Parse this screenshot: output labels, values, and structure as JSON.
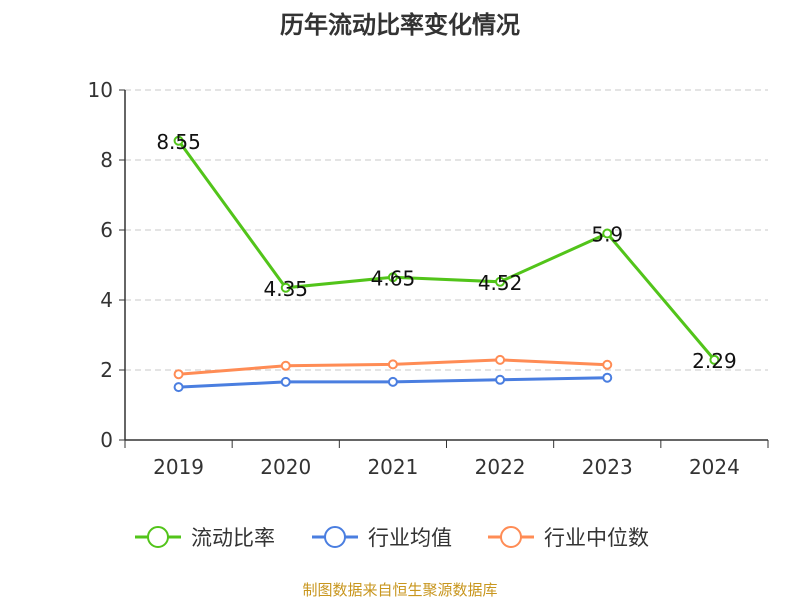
{
  "chart_data": {
    "type": "line",
    "title": "历年流动比率变化情况",
    "categories": [
      "2019",
      "2020",
      "2021",
      "2022",
      "2023",
      "2024"
    ],
    "ylim": [
      0,
      10
    ],
    "yticks": [
      0,
      2,
      4,
      6,
      8,
      10
    ],
    "grid": true,
    "legend_position": "bottom",
    "series": [
      {
        "name": "流动比率",
        "color": "#52c41a",
        "values": [
          8.55,
          4.35,
          4.65,
          4.52,
          5.9,
          2.29
        ],
        "labels": [
          "8.55",
          "4.35",
          "4.65",
          "4.52",
          "5.9",
          "2.29"
        ]
      },
      {
        "name": "行业均值",
        "color": "#4a7ee0",
        "values": [
          1.51,
          1.66,
          1.66,
          1.72,
          1.78,
          null
        ]
      },
      {
        "name": "行业中位数",
        "color": "#ff8c55",
        "values": [
          1.88,
          2.12,
          2.16,
          2.29,
          2.15,
          null
        ]
      }
    ]
  },
  "source": "制图数据来自恒生聚源数据库"
}
